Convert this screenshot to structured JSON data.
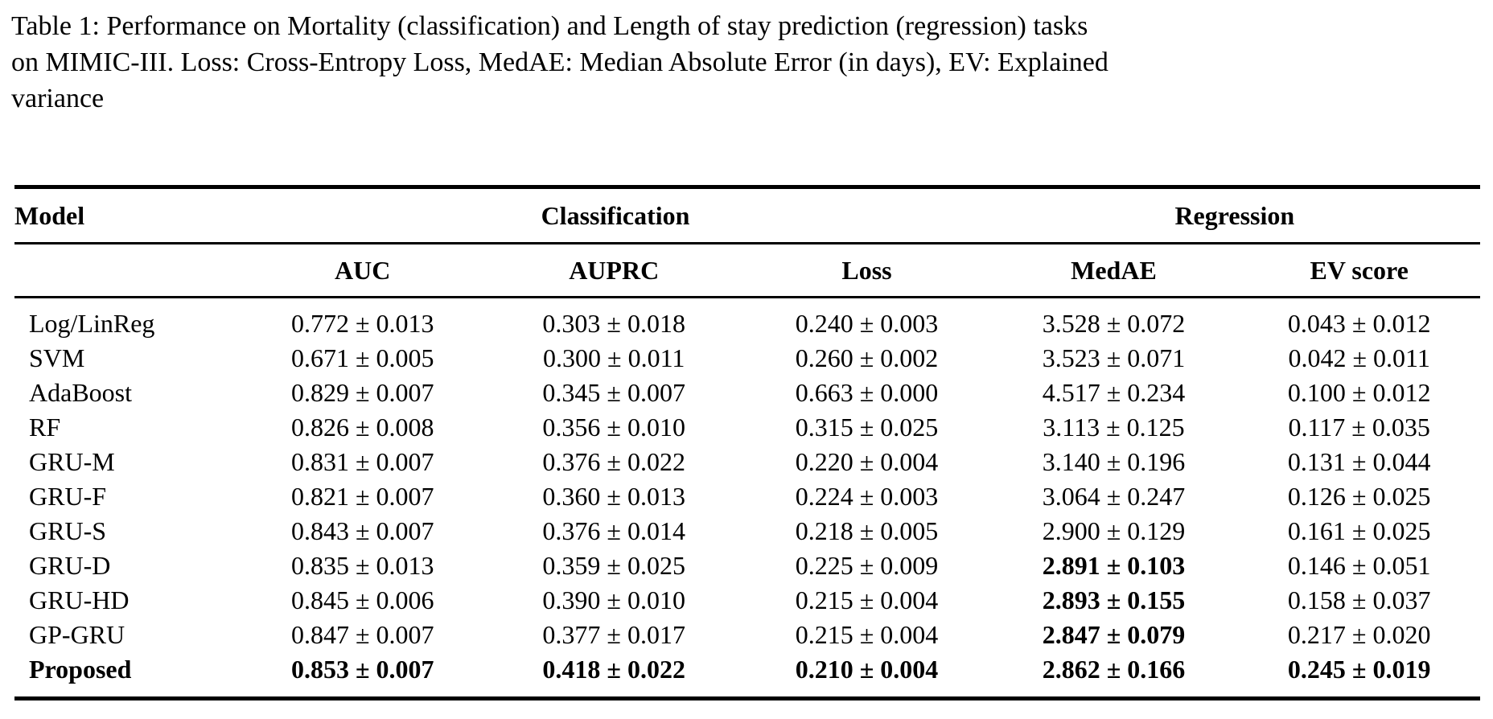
{
  "caption": {
    "lines": [
      "Table 1: Performance on Mortality (classification) and Length of stay prediction (regression) tasks",
      "on MIMIC-III. Loss: Cross-Entropy Loss, MedAE: Median Absolute Error (in days), EV: Explained",
      "variance"
    ]
  },
  "table": {
    "group_header": {
      "model": "Model",
      "classification": "Classification",
      "regression": "Regression"
    },
    "column_headers": {
      "auc": "AUC",
      "auprc": "AUPRC",
      "loss": "Loss",
      "medae": "MedAE",
      "ev": "EV score"
    },
    "rows": [
      {
        "model": "Log/LinReg",
        "model_bold": false,
        "cells": [
          {
            "text": "0.772 ± 0.013",
            "bold": false
          },
          {
            "text": "0.303 ± 0.018",
            "bold": false
          },
          {
            "text": "0.240 ± 0.003",
            "bold": false
          },
          {
            "text": "3.528 ± 0.072",
            "bold": false
          },
          {
            "text": "0.043 ± 0.012",
            "bold": false
          }
        ]
      },
      {
        "model": "SVM",
        "model_bold": false,
        "cells": [
          {
            "text": "0.671 ± 0.005",
            "bold": false
          },
          {
            "text": "0.300 ± 0.011",
            "bold": false
          },
          {
            "text": "0.260 ± 0.002",
            "bold": false
          },
          {
            "text": "3.523 ± 0.071",
            "bold": false
          },
          {
            "text": "0.042 ± 0.011",
            "bold": false
          }
        ]
      },
      {
        "model": "AdaBoost",
        "model_bold": false,
        "cells": [
          {
            "text": "0.829 ± 0.007",
            "bold": false
          },
          {
            "text": "0.345 ± 0.007",
            "bold": false
          },
          {
            "text": "0.663 ± 0.000",
            "bold": false
          },
          {
            "text": "4.517 ± 0.234",
            "bold": false
          },
          {
            "text": "0.100 ± 0.012",
            "bold": false
          }
        ]
      },
      {
        "model": "RF",
        "model_bold": false,
        "cells": [
          {
            "text": "0.826 ± 0.008",
            "bold": false
          },
          {
            "text": "0.356 ± 0.010",
            "bold": false
          },
          {
            "text": "0.315 ± 0.025",
            "bold": false
          },
          {
            "text": "3.113 ± 0.125",
            "bold": false
          },
          {
            "text": "0.117 ± 0.035",
            "bold": false
          }
        ]
      },
      {
        "model": "GRU-M",
        "model_bold": false,
        "cells": [
          {
            "text": "0.831 ± 0.007",
            "bold": false
          },
          {
            "text": "0.376 ± 0.022",
            "bold": false
          },
          {
            "text": "0.220 ± 0.004",
            "bold": false
          },
          {
            "text": "3.140 ± 0.196",
            "bold": false
          },
          {
            "text": "0.131 ± 0.044",
            "bold": false
          }
        ]
      },
      {
        "model": "GRU-F",
        "model_bold": false,
        "cells": [
          {
            "text": "0.821 ± 0.007",
            "bold": false
          },
          {
            "text": "0.360 ± 0.013",
            "bold": false
          },
          {
            "text": "0.224 ± 0.003",
            "bold": false
          },
          {
            "text": "3.064 ± 0.247",
            "bold": false
          },
          {
            "text": "0.126 ± 0.025",
            "bold": false
          }
        ]
      },
      {
        "model": "GRU-S",
        "model_bold": false,
        "cells": [
          {
            "text": "0.843 ± 0.007",
            "bold": false
          },
          {
            "text": "0.376 ± 0.014",
            "bold": false
          },
          {
            "text": "0.218 ± 0.005",
            "bold": false
          },
          {
            "text": "2.900 ± 0.129",
            "bold": false
          },
          {
            "text": "0.161 ± 0.025",
            "bold": false
          }
        ]
      },
      {
        "model": "GRU-D",
        "model_bold": false,
        "cells": [
          {
            "text": "0.835 ± 0.013",
            "bold": false
          },
          {
            "text": "0.359 ± 0.025",
            "bold": false
          },
          {
            "text": "0.225 ± 0.009",
            "bold": false
          },
          {
            "text": "2.891 ± 0.103",
            "bold": true
          },
          {
            "text": "0.146 ± 0.051",
            "bold": false
          }
        ]
      },
      {
        "model": "GRU-HD",
        "model_bold": false,
        "cells": [
          {
            "text": "0.845 ± 0.006",
            "bold": false
          },
          {
            "text": "0.390 ± 0.010",
            "bold": false
          },
          {
            "text": "0.215 ± 0.004",
            "bold": false
          },
          {
            "text": "2.893 ± 0.155",
            "bold": true
          },
          {
            "text": "0.158 ± 0.037",
            "bold": false
          }
        ]
      },
      {
        "model": "GP-GRU",
        "model_bold": false,
        "cells": [
          {
            "text": "0.847 ± 0.007",
            "bold": false
          },
          {
            "text": "0.377 ± 0.017",
            "bold": false
          },
          {
            "text": "0.215 ± 0.004",
            "bold": false
          },
          {
            "text": "2.847 ± 0.079",
            "bold": true
          },
          {
            "text": "0.217 ± 0.020",
            "bold": false
          }
        ]
      },
      {
        "model": "Proposed",
        "model_bold": true,
        "cells": [
          {
            "text": "0.853 ± 0.007",
            "bold": true
          },
          {
            "text": "0.418 ± 0.022",
            "bold": true
          },
          {
            "text": "0.210 ± 0.004",
            "bold": true
          },
          {
            "text": "2.862 ± 0.166",
            "bold": true
          },
          {
            "text": "0.245 ± 0.019",
            "bold": true
          }
        ]
      }
    ]
  }
}
